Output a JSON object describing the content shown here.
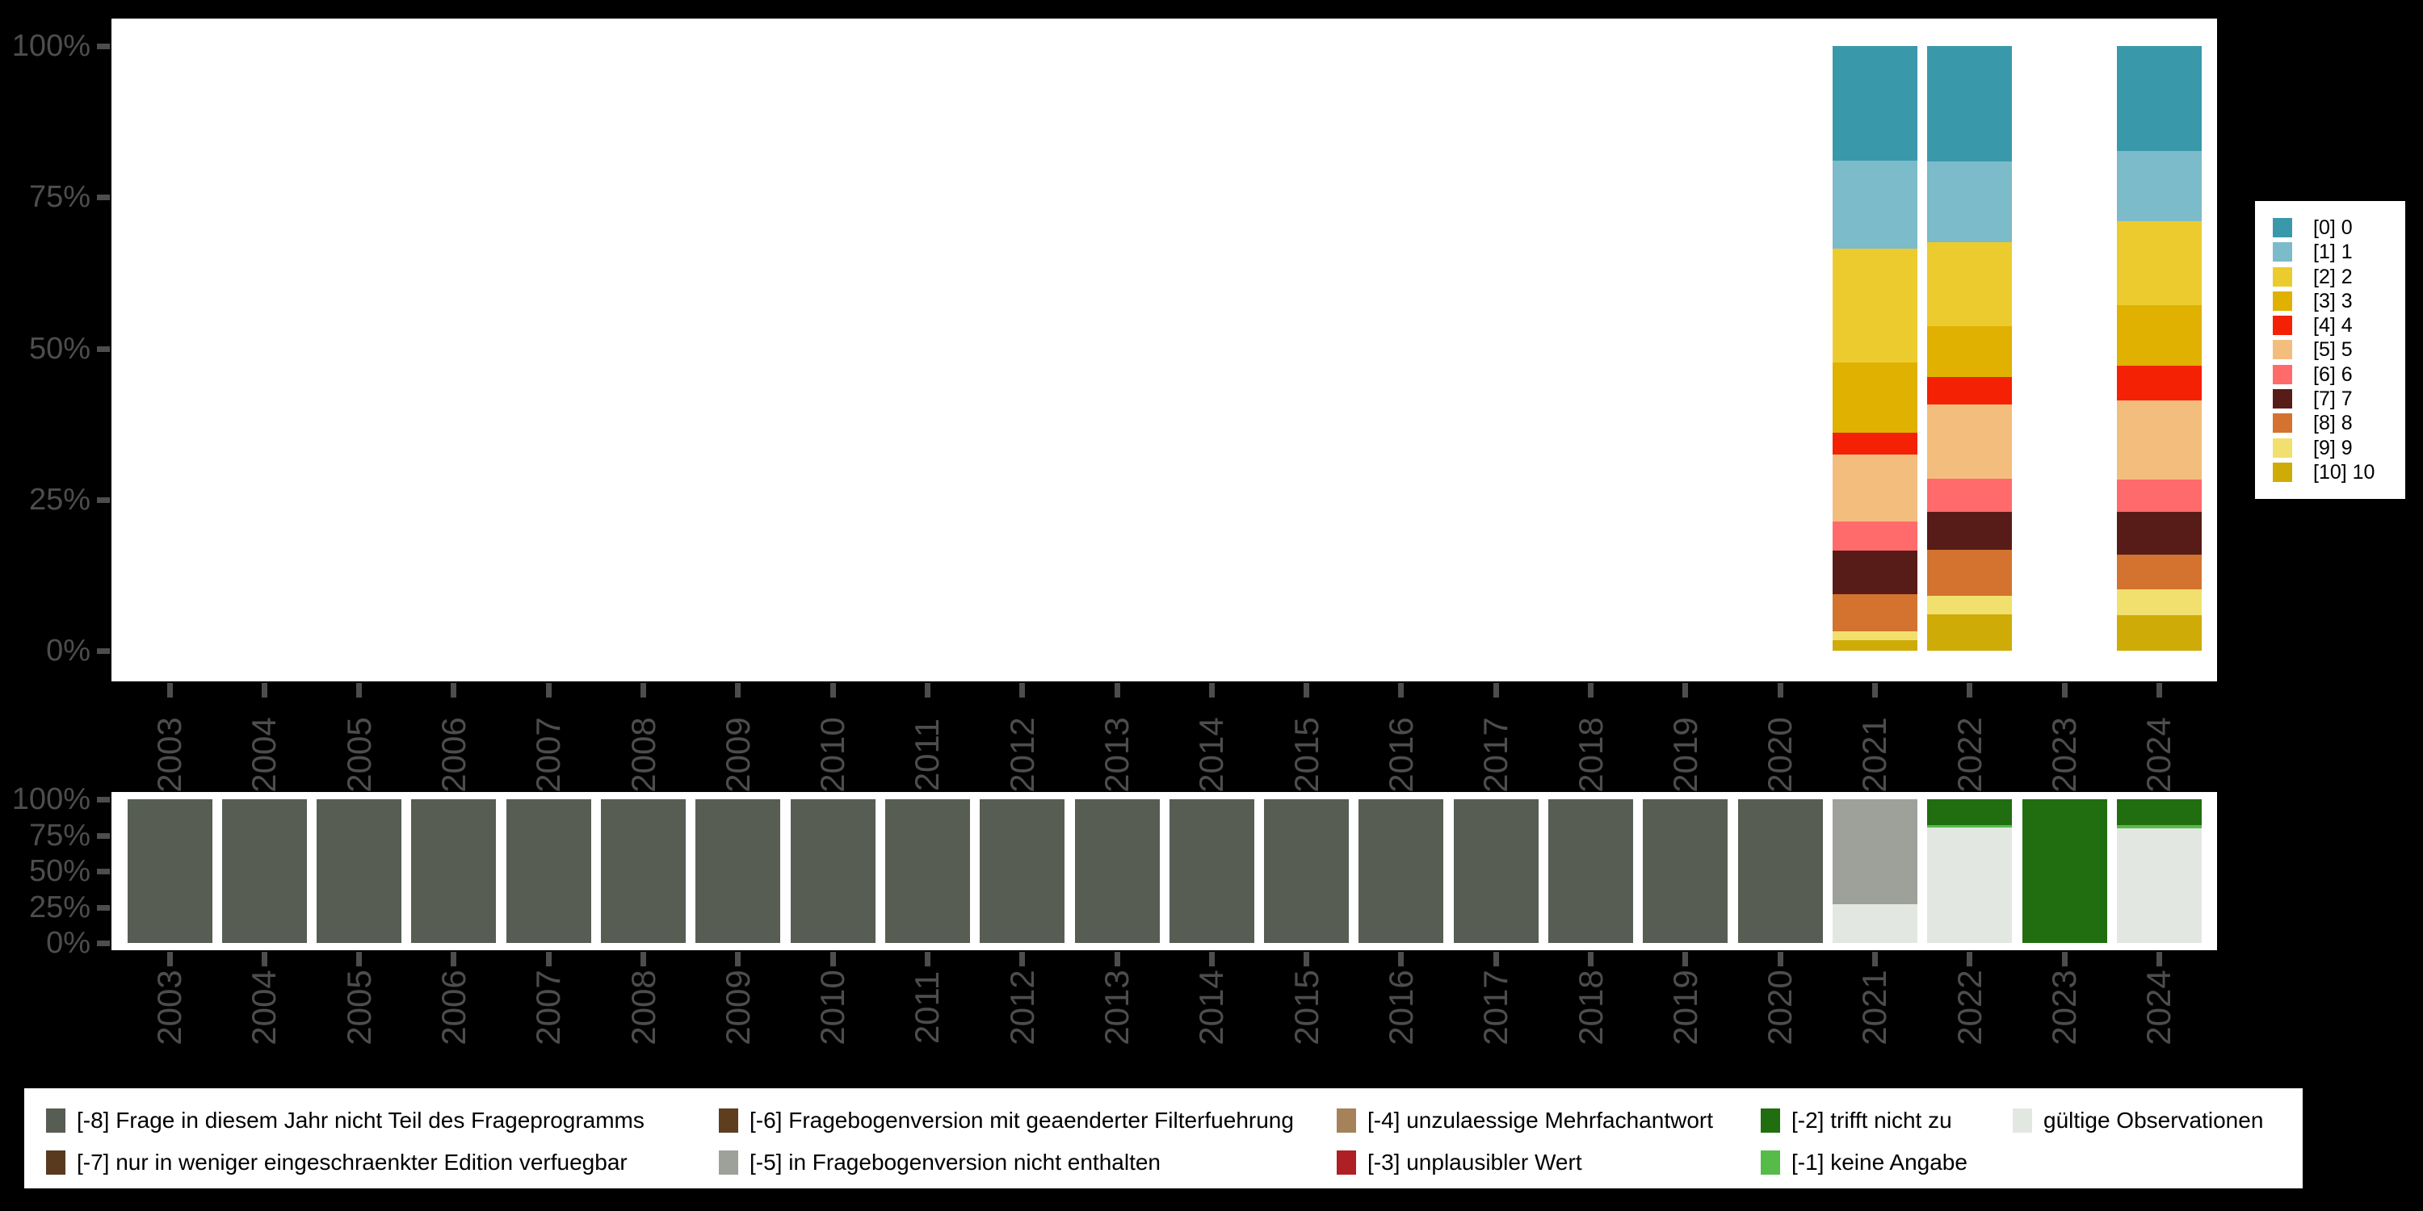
{
  "colors": {
    "background": "#000000",
    "plot_background": "#ffffff",
    "axis_text": "#4d4d4d",
    "legend_background": "#ffffff",
    "legend_text": "#000000"
  },
  "chart_data": [
    {
      "id": "valid-value-distribution",
      "type": "bar",
      "stacked": true,
      "unit": "percent",
      "orientation": "vertical",
      "grid": false,
      "legend_position": "right",
      "categories": [
        "2003",
        "2004",
        "2005",
        "2006",
        "2007",
        "2008",
        "2009",
        "2010",
        "2011",
        "2012",
        "2013",
        "2014",
        "2015",
        "2016",
        "2017",
        "2018",
        "2019",
        "2020",
        "2021",
        "2022",
        "2023",
        "2024"
      ],
      "y_ticks": [
        "100%",
        "75%",
        "50%",
        "25%",
        "0%"
      ],
      "ylim": [
        0,
        100
      ],
      "stack_order": "first-series-on-top",
      "series": [
        {
          "name": "[0] 0",
          "color": "#3a98ab",
          "values": {
            "2021": 19.0,
            "2022": 19.1,
            "2024": 17.4
          }
        },
        {
          "name": "[1] 1",
          "color": "#7cbbc9",
          "values": {
            "2021": 14.5,
            "2022": 13.3,
            "2024": 11.6
          }
        },
        {
          "name": "[2] 2",
          "color": "#eccb2e",
          "values": {
            "2021": 18.8,
            "2022": 13.9,
            "2024": 13.8
          }
        },
        {
          "name": "[3] 3",
          "color": "#e0b100",
          "values": {
            "2021": 11.7,
            "2022": 8.4,
            "2024": 10.1
          }
        },
        {
          "name": "[4] 4",
          "color": "#f42105",
          "values": {
            "2021": 3.5,
            "2022": 4.6,
            "2024": 5.7
          }
        },
        {
          "name": "[5] 5",
          "color": "#f3bd7d",
          "values": {
            "2021": 11.2,
            "2022": 12.3,
            "2024": 13.1
          }
        },
        {
          "name": "[6] 6",
          "color": "#ff6a6a",
          "values": {
            "2021": 4.8,
            "2022": 5.5,
            "2024": 5.3
          }
        },
        {
          "name": "[7] 7",
          "color": "#571c18",
          "values": {
            "2021": 7.2,
            "2022": 6.2,
            "2024": 7.1
          }
        },
        {
          "name": "[8] 8",
          "color": "#d3732f",
          "values": {
            "2021": 6.1,
            "2022": 7.6,
            "2024": 5.8
          }
        },
        {
          "name": "[9] 9",
          "color": "#f2e06e",
          "values": {
            "2021": 1.5,
            "2022": 3.1,
            "2024": 4.3
          }
        },
        {
          "name": "[10] 10",
          "color": "#cfab08",
          "values": {
            "2021": 1.7,
            "2022": 6.0,
            "2024": 5.8
          }
        }
      ]
    },
    {
      "id": "missing-value-distribution",
      "type": "bar",
      "stacked": true,
      "unit": "percent",
      "orientation": "vertical",
      "grid": false,
      "legend_position": "bottom",
      "categories": [
        "2003",
        "2004",
        "2005",
        "2006",
        "2007",
        "2008",
        "2009",
        "2010",
        "2011",
        "2012",
        "2013",
        "2014",
        "2015",
        "2016",
        "2017",
        "2018",
        "2019",
        "2020",
        "2021",
        "2022",
        "2023",
        "2024"
      ],
      "y_ticks": [
        "100%",
        "75%",
        "50%",
        "25%",
        "0%"
      ],
      "ylim": [
        0,
        100
      ],
      "stack_order": "first-series-on-top",
      "series": [
        {
          "name": "[-8] Frage in diesem Jahr nicht Teil des Frageprogramms",
          "color": "#575d53",
          "values": {
            "2003": 100,
            "2004": 100,
            "2005": 100,
            "2006": 100,
            "2007": 100,
            "2008": 100,
            "2009": 100,
            "2010": 100,
            "2011": 100,
            "2012": 100,
            "2013": 100,
            "2014": 100,
            "2015": 100,
            "2016": 100,
            "2017": 100,
            "2018": 100,
            "2019": 100,
            "2020": 100
          }
        },
        {
          "name": "[-7] nur in weniger eingeschraenkter Edition verfuegbar",
          "color": "#5a3a1e",
          "values": {}
        },
        {
          "name": "[-6] Fragebogenversion mit geaenderter Filterfuehrung",
          "color": "#5f3d1f",
          "values": {}
        },
        {
          "name": "[-5] in Fragebogenversion nicht enthalten",
          "color": "#9da19a",
          "values": {
            "2021": 73.0
          }
        },
        {
          "name": "[-4] unzulaessige Mehrfachantwort",
          "color": "#a5825a",
          "values": {}
        },
        {
          "name": "[-3] unplausibler Wert",
          "color": "#ae2024",
          "values": {}
        },
        {
          "name": "[-2] trifft nicht zu",
          "color": "#216e10",
          "values": {
            "2022": 18.2,
            "2023": 100,
            "2024": 18.2
          }
        },
        {
          "name": "[-1] keine Angabe",
          "color": "#57bb49",
          "values": {
            "2022": 1.6,
            "2024": 2.1
          }
        },
        {
          "name": "gültige Observationen",
          "color": "#e3e7e1",
          "values": {
            "2021": 27.0,
            "2022": 80.2,
            "2024": 79.7
          }
        }
      ],
      "legend_rows": [
        [
          "[-8] Frage in diesem Jahr nicht Teil des Frageprogramms",
          "[-6] Fragebogenversion mit geaenderter Filterfuehrung",
          "[-4] unzulaessige Mehrfachantwort",
          "[-2] trifft nicht zu",
          "gültige Observationen"
        ],
        [
          "[-7] nur in weniger eingeschraenkter Edition verfuegbar",
          "[-5] in Fragebogenversion nicht enthalten",
          "[-3] unplausibler Wert",
          "[-1] keine Angabe"
        ]
      ]
    }
  ]
}
